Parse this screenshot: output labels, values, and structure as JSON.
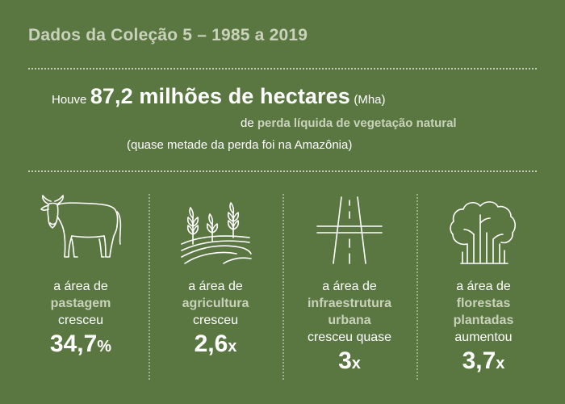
{
  "title": "Dados da Coleção 5 – 1985 a 2019",
  "headline": {
    "prefix": "Houve",
    "value": "87,2 milhões de hectares",
    "unit": "(Mha)",
    "line2_prefix": "de",
    "line2_highlight": "perda líquida de vegetação natural",
    "line3": "(quase metade da perda foi na Amazônia)"
  },
  "columns": [
    {
      "icon": "cow-icon",
      "intro": "a área de",
      "highlight_lines": [
        "pastagem"
      ],
      "verb_lines": [
        "cresceu"
      ],
      "stat": "34,7",
      "unit": "%"
    },
    {
      "icon": "crops-icon",
      "intro": "a área de",
      "highlight_lines": [
        "agricultura"
      ],
      "verb_lines": [
        "cresceu"
      ],
      "stat": "2,6",
      "unit": "x"
    },
    {
      "icon": "road-icon",
      "intro": "a área de",
      "highlight_lines": [
        "infraestrutura",
        "urbana"
      ],
      "verb_lines": [
        "cresceu quase"
      ],
      "stat": "3",
      "unit": "x"
    },
    {
      "icon": "forest-icon",
      "intro": "a área de",
      "highlight_lines": [
        "florestas",
        "plantadas"
      ],
      "verb_lines": [
        "aumentou"
      ],
      "stat": "3,7",
      "unit": "x"
    }
  ],
  "colors": {
    "background": "#5a7741",
    "highlight": "#c9d2bb",
    "text": "#ffffff"
  }
}
